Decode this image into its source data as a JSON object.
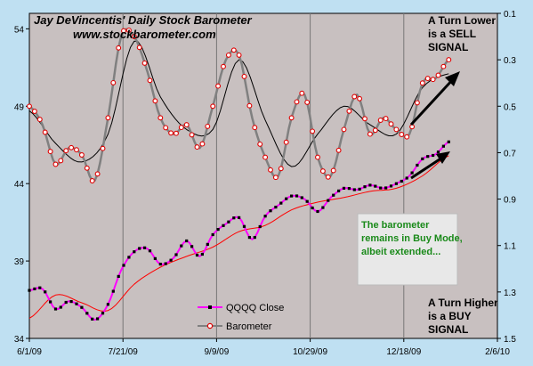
{
  "chart_data": {
    "type": "line",
    "title": "Jay DeVincentis' Daily Stock Barometer",
    "subtitle": "www.stockbarometer.com",
    "x_tick_labels": [
      "6/1/09",
      "7/21/09",
      "9/9/09",
      "10/29/09",
      "12/18/09",
      "2/6/10"
    ],
    "xlim": [
      "2009-06-01",
      "2010-02-06"
    ],
    "y_left": {
      "ticks": [
        34,
        39,
        44,
        49,
        54
      ],
      "ylim": [
        34,
        55
      ]
    },
    "y_right": {
      "ticks": [
        0.1,
        0.3,
        0.5,
        0.7,
        0.9,
        1.1,
        1.3,
        1.5
      ],
      "ylim": [
        0.1,
        1.5
      ],
      "inverted": true
    },
    "grid": "vertical",
    "legend_placement": "bottom-center",
    "series": [
      {
        "name": "QQQQ Close",
        "axis": "left",
        "color": "#ff00ff",
        "x": [
          "2009-06-01",
          "2009-06-08",
          "2009-06-15",
          "2009-06-22",
          "2009-06-29",
          "2009-07-06",
          "2009-07-13",
          "2009-07-20",
          "2009-07-27",
          "2009-08-03",
          "2009-08-10",
          "2009-08-17",
          "2009-08-24",
          "2009-08-31",
          "2009-09-07",
          "2009-09-14",
          "2009-09-21",
          "2009-09-28",
          "2009-10-05",
          "2009-10-12",
          "2009-10-19",
          "2009-10-26",
          "2009-11-02",
          "2009-11-09",
          "2009-11-16",
          "2009-11-23",
          "2009-11-30",
          "2009-12-07",
          "2009-12-14",
          "2009-12-21",
          "2009-12-28",
          "2010-01-04",
          "2010-01-11"
        ],
        "values": [
          37.1,
          37.2,
          35.9,
          36.4,
          36.0,
          35.2,
          36.2,
          38.4,
          39.6,
          39.8,
          38.8,
          39.2,
          40.3,
          39.3,
          40.7,
          41.4,
          41.8,
          40.4,
          41.9,
          42.6,
          43.2,
          43.0,
          42.2,
          43.1,
          43.7,
          43.6,
          43.9,
          43.7,
          44.0,
          44.5,
          45.6,
          45.9,
          46.7
        ]
      },
      {
        "name": "Barometer",
        "axis": "right",
        "color": "#808080",
        "x": [
          "2009-06-01",
          "2009-06-08",
          "2009-06-15",
          "2009-06-22",
          "2009-06-29",
          "2009-07-06",
          "2009-07-13",
          "2009-07-20",
          "2009-07-27",
          "2009-08-03",
          "2009-08-10",
          "2009-08-17",
          "2009-08-24",
          "2009-08-31",
          "2009-09-07",
          "2009-09-14",
          "2009-09-21",
          "2009-09-28",
          "2009-10-05",
          "2009-10-12",
          "2009-10-19",
          "2009-10-26",
          "2009-11-02",
          "2009-11-09",
          "2009-11-16",
          "2009-11-23",
          "2009-11-30",
          "2009-12-07",
          "2009-12-14",
          "2009-12-21",
          "2009-12-28",
          "2010-01-04",
          "2010-01-11"
        ],
        "values": [
          0.5,
          0.58,
          0.75,
          0.68,
          0.71,
          0.82,
          0.55,
          0.2,
          0.2,
          0.35,
          0.55,
          0.62,
          0.58,
          0.68,
          0.5,
          0.3,
          0.28,
          0.55,
          0.72,
          0.8,
          0.55,
          0.45,
          0.72,
          0.8,
          0.6,
          0.45,
          0.62,
          0.55,
          0.6,
          0.62,
          0.4,
          0.38,
          0.3
        ]
      },
      {
        "name": "",
        "axis": "left",
        "color": "#ff0000",
        "values_note": "",
        "x": [
          "2009-06-01",
          "2009-06-15",
          "2009-06-29",
          "2009-07-13",
          "2009-07-27",
          "2009-08-10",
          "2009-08-24",
          "2009-09-07",
          "2009-09-21",
          "2009-10-05",
          "2009-10-19",
          "2009-11-02",
          "2009-11-16",
          "2009-11-30",
          "2009-12-14",
          "2009-12-28",
          "2010-01-11"
        ],
        "values": [
          35.3,
          36.8,
          36.3,
          35.8,
          37.5,
          38.6,
          39.3,
          39.9,
          40.9,
          41.3,
          42.3,
          42.8,
          43.1,
          43.5,
          43.7,
          44.5,
          45.8
        ]
      },
      {
        "name": "",
        "axis": "right",
        "color": "#000000",
        "x": [
          "2009-06-01",
          "2009-06-15",
          "2009-06-29",
          "2009-07-13",
          "2009-07-27",
          "2009-08-10",
          "2009-08-24",
          "2009-09-07",
          "2009-09-21",
          "2009-10-05",
          "2009-10-19",
          "2009-11-02",
          "2009-11-16",
          "2009-11-30",
          "2009-12-14",
          "2009-12-28",
          "2010-01-11"
        ],
        "values": [
          0.52,
          0.66,
          0.74,
          0.62,
          0.22,
          0.46,
          0.6,
          0.6,
          0.3,
          0.56,
          0.76,
          0.62,
          0.5,
          0.58,
          0.62,
          0.42,
          0.36
        ]
      }
    ],
    "annotations": {
      "top_right": [
        "A Turn Lower",
        "is a SELL",
        "SIGNAL"
      ],
      "bottom_right": [
        "A Turn Higher",
        "is a BUY",
        "SIGNAL"
      ],
      "callout": [
        "The barometer",
        "remains in Buy Mode,",
        "albeit extended..."
      ]
    },
    "colors": {
      "plot_bg": "#c8c0c0",
      "frame_bg": "#bfe0f2",
      "callout_bg": "#e8e8e8",
      "callout_text": "#1a8a1a"
    }
  }
}
